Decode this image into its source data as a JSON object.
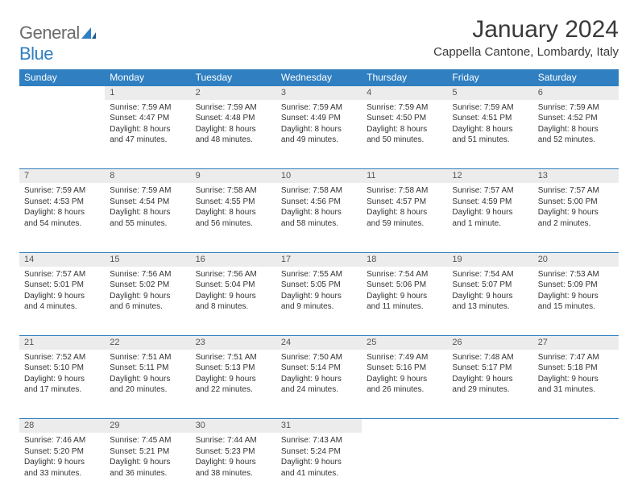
{
  "brand": {
    "name_gray": "General",
    "name_blue": "Blue"
  },
  "title": "January 2024",
  "location": "Cappella Cantone, Lombardy, Italy",
  "colors": {
    "header_bg": "#2f7fc1",
    "header_text": "#ffffff",
    "daynum_bg": "#ececec",
    "row_border": "#2f7fc1",
    "body_text": "#333333",
    "brand_gray": "#6b6b6b",
    "brand_blue": "#2f7fc1",
    "page_bg": "#ffffff"
  },
  "typography": {
    "title_fontsize": 30,
    "location_fontsize": 15,
    "weekday_fontsize": 12,
    "daynum_fontsize": 11,
    "cell_fontsize": 10
  },
  "weekdays": [
    "Sunday",
    "Monday",
    "Tuesday",
    "Wednesday",
    "Thursday",
    "Friday",
    "Saturday"
  ],
  "weeks": [
    {
      "nums": [
        "",
        "1",
        "2",
        "3",
        "4",
        "5",
        "6"
      ],
      "cells": [
        null,
        {
          "sunrise": "Sunrise: 7:59 AM",
          "sunset": "Sunset: 4:47 PM",
          "daylight": "Daylight: 8 hours and 47 minutes."
        },
        {
          "sunrise": "Sunrise: 7:59 AM",
          "sunset": "Sunset: 4:48 PM",
          "daylight": "Daylight: 8 hours and 48 minutes."
        },
        {
          "sunrise": "Sunrise: 7:59 AM",
          "sunset": "Sunset: 4:49 PM",
          "daylight": "Daylight: 8 hours and 49 minutes."
        },
        {
          "sunrise": "Sunrise: 7:59 AM",
          "sunset": "Sunset: 4:50 PM",
          "daylight": "Daylight: 8 hours and 50 minutes."
        },
        {
          "sunrise": "Sunrise: 7:59 AM",
          "sunset": "Sunset: 4:51 PM",
          "daylight": "Daylight: 8 hours and 51 minutes."
        },
        {
          "sunrise": "Sunrise: 7:59 AM",
          "sunset": "Sunset: 4:52 PM",
          "daylight": "Daylight: 8 hours and 52 minutes."
        }
      ]
    },
    {
      "nums": [
        "7",
        "8",
        "9",
        "10",
        "11",
        "12",
        "13"
      ],
      "cells": [
        {
          "sunrise": "Sunrise: 7:59 AM",
          "sunset": "Sunset: 4:53 PM",
          "daylight": "Daylight: 8 hours and 54 minutes."
        },
        {
          "sunrise": "Sunrise: 7:59 AM",
          "sunset": "Sunset: 4:54 PM",
          "daylight": "Daylight: 8 hours and 55 minutes."
        },
        {
          "sunrise": "Sunrise: 7:58 AM",
          "sunset": "Sunset: 4:55 PM",
          "daylight": "Daylight: 8 hours and 56 minutes."
        },
        {
          "sunrise": "Sunrise: 7:58 AM",
          "sunset": "Sunset: 4:56 PM",
          "daylight": "Daylight: 8 hours and 58 minutes."
        },
        {
          "sunrise": "Sunrise: 7:58 AM",
          "sunset": "Sunset: 4:57 PM",
          "daylight": "Daylight: 8 hours and 59 minutes."
        },
        {
          "sunrise": "Sunrise: 7:57 AM",
          "sunset": "Sunset: 4:59 PM",
          "daylight": "Daylight: 9 hours and 1 minute."
        },
        {
          "sunrise": "Sunrise: 7:57 AM",
          "sunset": "Sunset: 5:00 PM",
          "daylight": "Daylight: 9 hours and 2 minutes."
        }
      ]
    },
    {
      "nums": [
        "14",
        "15",
        "16",
        "17",
        "18",
        "19",
        "20"
      ],
      "cells": [
        {
          "sunrise": "Sunrise: 7:57 AM",
          "sunset": "Sunset: 5:01 PM",
          "daylight": "Daylight: 9 hours and 4 minutes."
        },
        {
          "sunrise": "Sunrise: 7:56 AM",
          "sunset": "Sunset: 5:02 PM",
          "daylight": "Daylight: 9 hours and 6 minutes."
        },
        {
          "sunrise": "Sunrise: 7:56 AM",
          "sunset": "Sunset: 5:04 PM",
          "daylight": "Daylight: 9 hours and 8 minutes."
        },
        {
          "sunrise": "Sunrise: 7:55 AM",
          "sunset": "Sunset: 5:05 PM",
          "daylight": "Daylight: 9 hours and 9 minutes."
        },
        {
          "sunrise": "Sunrise: 7:54 AM",
          "sunset": "Sunset: 5:06 PM",
          "daylight": "Daylight: 9 hours and 11 minutes."
        },
        {
          "sunrise": "Sunrise: 7:54 AM",
          "sunset": "Sunset: 5:07 PM",
          "daylight": "Daylight: 9 hours and 13 minutes."
        },
        {
          "sunrise": "Sunrise: 7:53 AM",
          "sunset": "Sunset: 5:09 PM",
          "daylight": "Daylight: 9 hours and 15 minutes."
        }
      ]
    },
    {
      "nums": [
        "21",
        "22",
        "23",
        "24",
        "25",
        "26",
        "27"
      ],
      "cells": [
        {
          "sunrise": "Sunrise: 7:52 AM",
          "sunset": "Sunset: 5:10 PM",
          "daylight": "Daylight: 9 hours and 17 minutes."
        },
        {
          "sunrise": "Sunrise: 7:51 AM",
          "sunset": "Sunset: 5:11 PM",
          "daylight": "Daylight: 9 hours and 20 minutes."
        },
        {
          "sunrise": "Sunrise: 7:51 AM",
          "sunset": "Sunset: 5:13 PM",
          "daylight": "Daylight: 9 hours and 22 minutes."
        },
        {
          "sunrise": "Sunrise: 7:50 AM",
          "sunset": "Sunset: 5:14 PM",
          "daylight": "Daylight: 9 hours and 24 minutes."
        },
        {
          "sunrise": "Sunrise: 7:49 AM",
          "sunset": "Sunset: 5:16 PM",
          "daylight": "Daylight: 9 hours and 26 minutes."
        },
        {
          "sunrise": "Sunrise: 7:48 AM",
          "sunset": "Sunset: 5:17 PM",
          "daylight": "Daylight: 9 hours and 29 minutes."
        },
        {
          "sunrise": "Sunrise: 7:47 AM",
          "sunset": "Sunset: 5:18 PM",
          "daylight": "Daylight: 9 hours and 31 minutes."
        }
      ]
    },
    {
      "nums": [
        "28",
        "29",
        "30",
        "31",
        "",
        "",
        ""
      ],
      "cells": [
        {
          "sunrise": "Sunrise: 7:46 AM",
          "sunset": "Sunset: 5:20 PM",
          "daylight": "Daylight: 9 hours and 33 minutes."
        },
        {
          "sunrise": "Sunrise: 7:45 AM",
          "sunset": "Sunset: 5:21 PM",
          "daylight": "Daylight: 9 hours and 36 minutes."
        },
        {
          "sunrise": "Sunrise: 7:44 AM",
          "sunset": "Sunset: 5:23 PM",
          "daylight": "Daylight: 9 hours and 38 minutes."
        },
        {
          "sunrise": "Sunrise: 7:43 AM",
          "sunset": "Sunset: 5:24 PM",
          "daylight": "Daylight: 9 hours and 41 minutes."
        },
        null,
        null,
        null
      ]
    }
  ]
}
